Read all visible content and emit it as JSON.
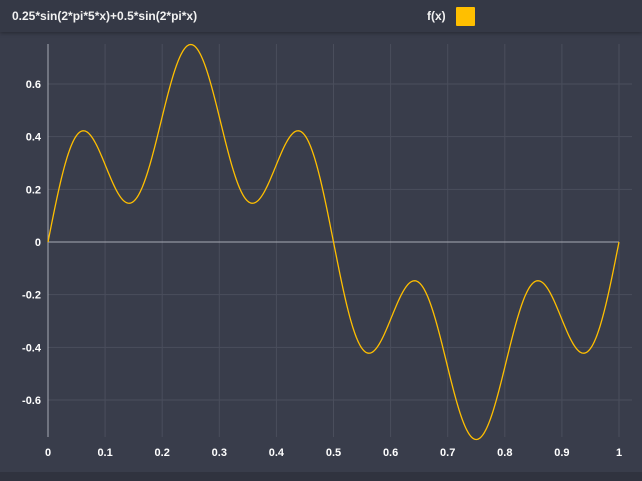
{
  "header": {
    "expression": "0.25*sin(2*pi*5*x)+0.5*sin(2*pi*x)",
    "legend_label": "f(x)"
  },
  "colors": {
    "background": "#393d4b",
    "grid": "#4a4e5c",
    "axis": "#a8abb4",
    "series": "#ffbf00"
  },
  "chart_data": {
    "type": "line",
    "title": "0.25*sin(2*pi*5*x)+0.5*sin(2*pi*x)",
    "xlabel": "",
    "ylabel": "",
    "function": "0.25*sin(2*pi*5*x)+0.5*sin(2*pi*x)",
    "xlim": [
      0,
      1
    ],
    "ylim": [
      -0.75,
      0.75
    ],
    "grid": true,
    "legend_placement": "top-right",
    "x_ticks": [
      0,
      0.1,
      0.2,
      0.3,
      0.4,
      0.5,
      0.6,
      0.7,
      0.8,
      0.9,
      1
    ],
    "x_tick_labels": [
      "0",
      "0.1",
      "0.2",
      "0.3",
      "0.4",
      "0.5",
      "0.6",
      "0.7",
      "0.8",
      "0.9",
      "1"
    ],
    "y_ticks": [
      0.6,
      0.4,
      0.2,
      0,
      -0.2,
      -0.4,
      -0.6
    ],
    "y_tick_labels": [
      "0.6",
      "0.4",
      "0.2",
      "0",
      "-0.2",
      "-0.4",
      "-0.6"
    ],
    "series": [
      {
        "name": "f(x)",
        "x": [
          0,
          0.05,
          0.1,
          0.15,
          0.2,
          0.25,
          0.3,
          0.35,
          0.4,
          0.45,
          0.5,
          0.55,
          0.6,
          0.65,
          0.7,
          0.75,
          0.8,
          0.85,
          0.9,
          0.95,
          1
        ],
        "y": [
          0,
          0.405,
          0.294,
          0.155,
          0.476,
          0.75,
          0.476,
          0.155,
          0.294,
          0.405,
          0,
          -0.405,
          -0.294,
          -0.155,
          -0.476,
          -0.75,
          -0.476,
          -0.155,
          -0.294,
          -0.405,
          0
        ]
      }
    ]
  }
}
